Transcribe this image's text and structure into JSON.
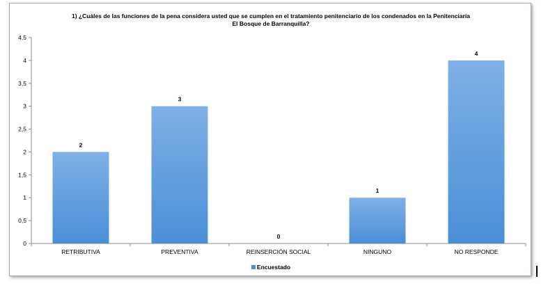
{
  "chart_data": {
    "type": "bar",
    "title_lines": [
      "1) ¿Cuáles de las funciones de la pena considera usted que se cumplen en el tratamiento penitenciario de los condenados en la Penitenciaría",
      "El Bosque de Barranquilla?"
    ],
    "categories": [
      "RETRIBUTIVA",
      "PREVENTIVA",
      "REINSERCIÓN SOCIAL",
      "NINGUNO",
      "NO RESPONDE"
    ],
    "series": [
      {
        "name": "Encuestado",
        "values": [
          2,
          3,
          0,
          1,
          4
        ]
      }
    ],
    "data_labels": [
      "2",
      "3",
      "0",
      "1",
      "4"
    ],
    "y_ticks": [
      "0",
      "0,5",
      "1",
      "1,5",
      "2",
      "2,5",
      "3",
      "3,5",
      "4",
      "4,5"
    ],
    "ylim": [
      0,
      4.5
    ],
    "grid": false,
    "legend_position": "bottom",
    "bar_color": "#4a8fd6",
    "bar_color_light": "#7eb1e6"
  }
}
